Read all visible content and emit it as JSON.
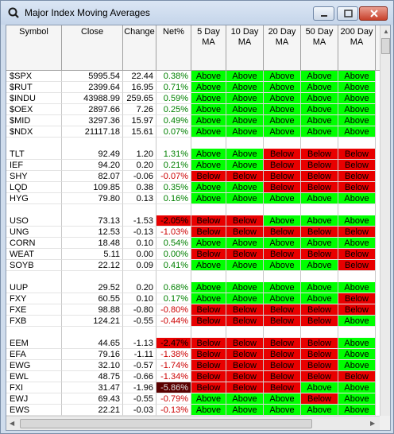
{
  "window": {
    "title": "Major Index Moving Averages",
    "icon": "app-icon",
    "buttons": {
      "minimize": "minimize-icon",
      "maximize": "maximize-icon",
      "close": "close-icon"
    }
  },
  "columns": [
    "Symbol",
    "Close",
    "Change",
    "Net%",
    "5 Day\nMA",
    "10 Day\nMA",
    "20 Day\nMA",
    "50 Day\nMA",
    "200 Day\nMA"
  ],
  "colors": {
    "above": "#00ff00",
    "below": "#e80000",
    "positive": "#008000",
    "negative": "#cc0000"
  },
  "groups": [
    [
      {
        "symbol": "$SPX",
        "close": "5995.54",
        "change": "22.44",
        "pct": "0.38%",
        "ma": [
          "Above",
          "Above",
          "Above",
          "Above",
          "Above"
        ]
      },
      {
        "symbol": "$RUT",
        "close": "2399.64",
        "change": "16.95",
        "pct": "0.71%",
        "ma": [
          "Above",
          "Above",
          "Above",
          "Above",
          "Above"
        ]
      },
      {
        "symbol": "$INDU",
        "close": "43988.99",
        "change": "259.65",
        "pct": "0.59%",
        "ma": [
          "Above",
          "Above",
          "Above",
          "Above",
          "Above"
        ]
      },
      {
        "symbol": "$OEX",
        "close": "2897.66",
        "change": "7.26",
        "pct": "0.25%",
        "ma": [
          "Above",
          "Above",
          "Above",
          "Above",
          "Above"
        ]
      },
      {
        "symbol": "$MID",
        "close": "3297.36",
        "change": "15.97",
        "pct": "0.49%",
        "ma": [
          "Above",
          "Above",
          "Above",
          "Above",
          "Above"
        ]
      },
      {
        "symbol": "$NDX",
        "close": "21117.18",
        "change": "15.61",
        "pct": "0.07%",
        "ma": [
          "Above",
          "Above",
          "Above",
          "Above",
          "Above"
        ]
      }
    ],
    [
      {
        "symbol": "TLT",
        "close": "92.49",
        "change": "1.20",
        "pct": "1.31%",
        "ma": [
          "Above",
          "Above",
          "Below",
          "Below",
          "Below"
        ]
      },
      {
        "symbol": "IEF",
        "close": "94.20",
        "change": "0.20",
        "pct": "0.21%",
        "ma": [
          "Above",
          "Above",
          "Below",
          "Below",
          "Below"
        ]
      },
      {
        "symbol": "SHY",
        "close": "82.07",
        "change": "-0.06",
        "pct": "-0.07%",
        "ma": [
          "Below",
          "Below",
          "Below",
          "Below",
          "Below"
        ]
      },
      {
        "symbol": "LQD",
        "close": "109.85",
        "change": "0.38",
        "pct": "0.35%",
        "ma": [
          "Above",
          "Above",
          "Below",
          "Below",
          "Below"
        ]
      },
      {
        "symbol": "HYG",
        "close": "79.80",
        "change": "0.13",
        "pct": "0.16%",
        "ma": [
          "Above",
          "Above",
          "Above",
          "Above",
          "Above"
        ]
      }
    ],
    [
      {
        "symbol": "USO",
        "close": "73.13",
        "change": "-1.53",
        "pct": "-2.05%",
        "ma": [
          "Below",
          "Below",
          "Above",
          "Above",
          "Above"
        ],
        "pct_style": "strong"
      },
      {
        "symbol": "UNG",
        "close": "12.53",
        "change": "-0.13",
        "pct": "-1.03%",
        "ma": [
          "Below",
          "Below",
          "Below",
          "Below",
          "Below"
        ]
      },
      {
        "symbol": "CORN",
        "close": "18.48",
        "change": "0.10",
        "pct": "0.54%",
        "ma": [
          "Above",
          "Above",
          "Above",
          "Above",
          "Above"
        ]
      },
      {
        "symbol": "WEAT",
        "close": "5.11",
        "change": "0.00",
        "pct": "0.00%",
        "ma": [
          "Below",
          "Below",
          "Below",
          "Below",
          "Below"
        ]
      },
      {
        "symbol": "SOYB",
        "close": "22.12",
        "change": "0.09",
        "pct": "0.41%",
        "ma": [
          "Above",
          "Above",
          "Above",
          "Above",
          "Below"
        ]
      }
    ],
    [
      {
        "symbol": "UUP",
        "close": "29.52",
        "change": "0.20",
        "pct": "0.68%",
        "ma": [
          "Above",
          "Above",
          "Above",
          "Above",
          "Above"
        ]
      },
      {
        "symbol": "FXY",
        "close": "60.55",
        "change": "0.10",
        "pct": "0.17%",
        "ma": [
          "Above",
          "Above",
          "Above",
          "Above",
          "Below"
        ]
      },
      {
        "symbol": "FXE",
        "close": "98.88",
        "change": "-0.80",
        "pct": "-0.80%",
        "ma": [
          "Below",
          "Below",
          "Below",
          "Below",
          "Below"
        ]
      },
      {
        "symbol": "FXB",
        "close": "124.21",
        "change": "-0.55",
        "pct": "-0.44%",
        "ma": [
          "Below",
          "Below",
          "Below",
          "Below",
          "Above"
        ]
      }
    ],
    [
      {
        "symbol": "EEM",
        "close": "44.65",
        "change": "-1.13",
        "pct": "-2.47%",
        "ma": [
          "Below",
          "Below",
          "Below",
          "Below",
          "Above"
        ],
        "pct_style": "strong"
      },
      {
        "symbol": "EFA",
        "close": "79.16",
        "change": "-1.11",
        "pct": "-1.38%",
        "ma": [
          "Below",
          "Below",
          "Below",
          "Below",
          "Above"
        ]
      },
      {
        "symbol": "EWG",
        "close": "32.10",
        "change": "-0.57",
        "pct": "-1.74%",
        "ma": [
          "Below",
          "Below",
          "Below",
          "Below",
          "Above"
        ]
      },
      {
        "symbol": "EWL",
        "close": "48.75",
        "change": "-0.66",
        "pct": "-1.34%",
        "ma": [
          "Below",
          "Below",
          "Below",
          "Below",
          "Below"
        ]
      },
      {
        "symbol": "FXI",
        "close": "31.47",
        "change": "-1.96",
        "pct": "-5.86%",
        "ma": [
          "Below",
          "Below",
          "Below",
          "Above",
          "Above"
        ],
        "pct_style": "dark"
      },
      {
        "symbol": "EWJ",
        "close": "69.43",
        "change": "-0.55",
        "pct": "-0.79%",
        "ma": [
          "Above",
          "Above",
          "Above",
          "Below",
          "Above"
        ]
      },
      {
        "symbol": "EWS",
        "close": "22.21",
        "change": "-0.03",
        "pct": "-0.13%",
        "ma": [
          "Above",
          "Above",
          "Above",
          "Above",
          "Above"
        ]
      }
    ]
  ]
}
